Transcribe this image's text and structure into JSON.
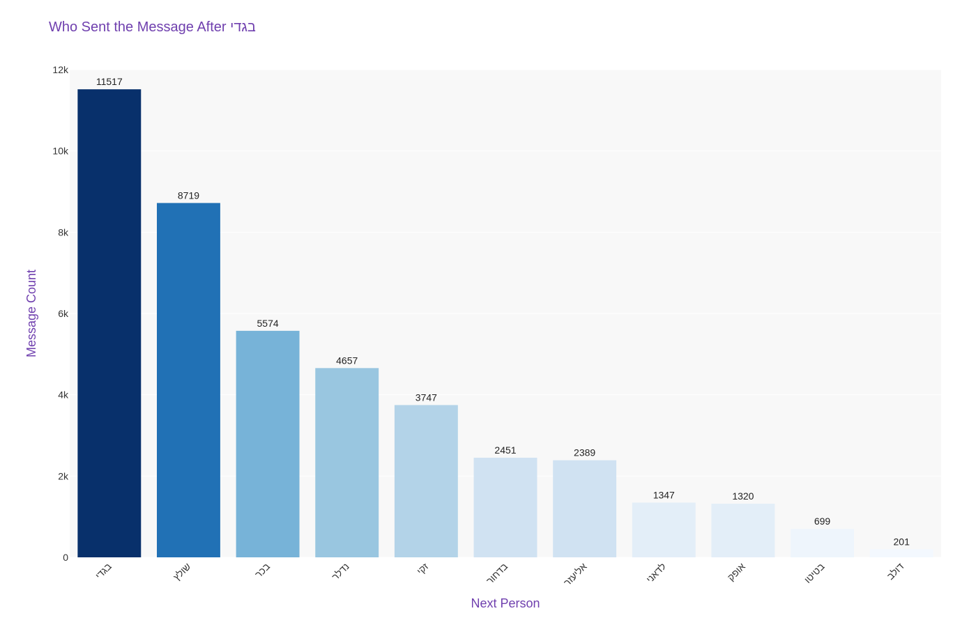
{
  "chart_data": {
    "type": "bar",
    "title": "Who Sent the Message After בגדי",
    "xlabel": "Next Person",
    "ylabel": "Message Count",
    "categories": [
      "בגדי",
      "שולץ",
      "בכר",
      "נדלר",
      "זקי",
      "בדחור",
      "אליעזר",
      "לדאני",
      "אופק",
      "בטיטו",
      "דולב"
    ],
    "values": [
      11517,
      8719,
      5574,
      4657,
      3747,
      2451,
      2389,
      1347,
      1320,
      699,
      201
    ],
    "ylim": [
      0,
      12000
    ],
    "yticks": [
      0,
      2000,
      4000,
      6000,
      8000,
      10000,
      12000
    ],
    "ytick_labels": [
      "0",
      "2k",
      "4k",
      "6k",
      "8k",
      "10k",
      "12k"
    ],
    "bar_colors": [
      "#08306b",
      "#2171b5",
      "#77b3d8",
      "#99c6e0",
      "#b3d3e8",
      "#d0e2f2",
      "#d0e2f2",
      "#e3eef8",
      "#e3eef8",
      "#eef5fc",
      "#f3f8fe"
    ],
    "plot_background": "#f8f8f8",
    "title_color": "#6f3fae",
    "grid": true
  }
}
